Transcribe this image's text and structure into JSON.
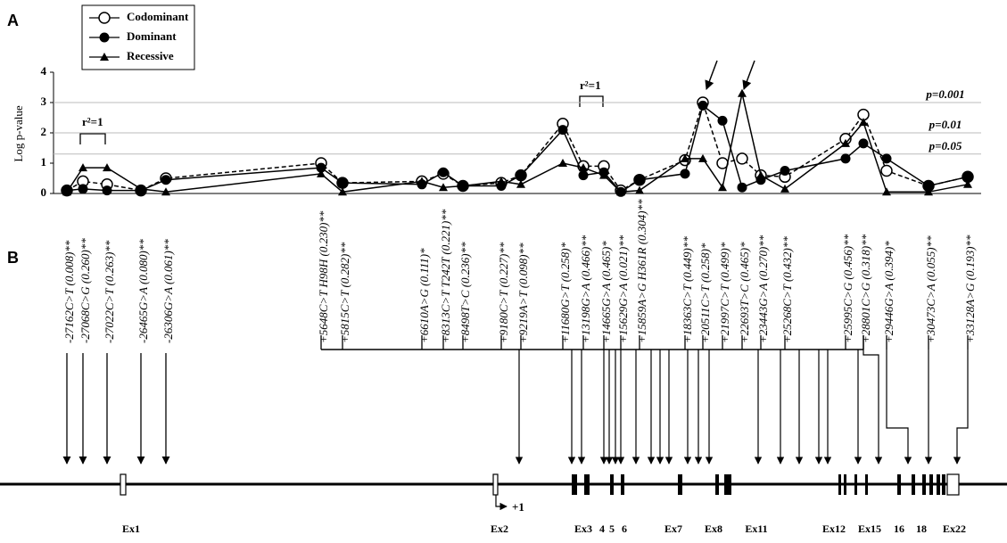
{
  "chart_data": {
    "type": "line",
    "panel": "A",
    "ylabel": "Log p-value",
    "ylim": [
      0,
      4
    ],
    "yticks": [
      0,
      1,
      2,
      3,
      4
    ],
    "categories": [
      null,
      null,
      null,
      null,
      null,
      null,
      null,
      null,
      null,
      null,
      null,
      null,
      null,
      null,
      null,
      null,
      null,
      null,
      null,
      null,
      null,
      null,
      null,
      null,
      null,
      null,
      null,
      null
    ],
    "thresholds": [
      {
        "value": 3,
        "label": "p=0.001"
      },
      {
        "value": 2,
        "label": "p=0.01"
      },
      {
        "value": 1.3,
        "label": "p=0.05"
      }
    ],
    "annotations": [
      "r²=1",
      "r²=1"
    ],
    "series": [
      {
        "name": "Codominant",
        "color": "#000000",
        "marker": "open-circle",
        "dash": true,
        "values": [
          0.1,
          0.4,
          0.3,
          0.1,
          0.5,
          1.0,
          0.35,
          0.4,
          0.65,
          0.25,
          0.35,
          0.6,
          2.3,
          0.9,
          0.9,
          0.1,
          0.45,
          1.1,
          3.0,
          1.0,
          1.15,
          0.6,
          0.55,
          1.8,
          2.6,
          0.75,
          0.25,
          0.55
        ]
      },
      {
        "name": "Dominant",
        "color": "#000000",
        "marker": "filled-circle",
        "dash": false,
        "values": [
          0.1,
          0.15,
          0.1,
          0.1,
          0.45,
          0.85,
          0.35,
          0.3,
          0.7,
          0.25,
          0.25,
          0.6,
          2.1,
          0.6,
          0.7,
          0.05,
          0.45,
          0.65,
          2.9,
          2.4,
          0.2,
          0.45,
          0.75,
          1.15,
          1.65,
          1.15,
          0.25,
          0.55
        ]
      },
      {
        "name": "Recessive",
        "color": "#000000",
        "marker": "triangle",
        "dash": false,
        "values": [
          0.05,
          0.85,
          0.85,
          0.15,
          0.05,
          0.65,
          0.05,
          0.4,
          0.2,
          0.25,
          0.4,
          0.3,
          1.0,
          0.85,
          0.6,
          0.05,
          0.1,
          1.15,
          1.15,
          0.2,
          3.3,
          0.6,
          0.15,
          1.65,
          2.35,
          0.05,
          0.05,
          0.3
        ]
      }
    ]
  },
  "gene": {
    "panel": "B",
    "snps": [
      "-27162C>T (0.008)**",
      "-27068C>G (0.260)**",
      "-27022C>T (0.263)**",
      "-26465G>A (0.080)**",
      "-26306G>A (0.061)**",
      "+5648C>T H98H (0.230)**",
      "+5815C>T (0.282)**",
      "+6610A>G (0.111)*",
      "+8313C>T T242T (0.221)**",
      "+8498T>C (0.236)**",
      "+9180C>T (0.227)**",
      "+9219A>T (0.098)**",
      "+11680G>T (0.258)*",
      "+13198G>A (0.466)**",
      "+14665G>A (0.465)*",
      "+15629G>A (0.021)**",
      "+15859A>G H361R (0.304)**",
      "+18363C>T (0.449)**",
      "+20511C>T (0.258)*",
      "+21997C>T (0.499)*",
      "+22693T>C (0.465)*",
      "+23443G>A (0.270)**",
      "+25268C>T (0.432)**",
      "+25995C>G (0.456)**",
      "+28801C>G (0.318)**",
      "+29446G>A (0.394)*",
      "+30473C>A (0.055)**",
      "+33128A>G (0.193)**"
    ],
    "start": "+1",
    "exons": [
      "Ex1",
      "Ex2",
      "Ex3",
      "4",
      "5",
      "6",
      "Ex7",
      "Ex8",
      "Ex11",
      "Ex12",
      "Ex15",
      "16",
      "18",
      "Ex22"
    ]
  }
}
